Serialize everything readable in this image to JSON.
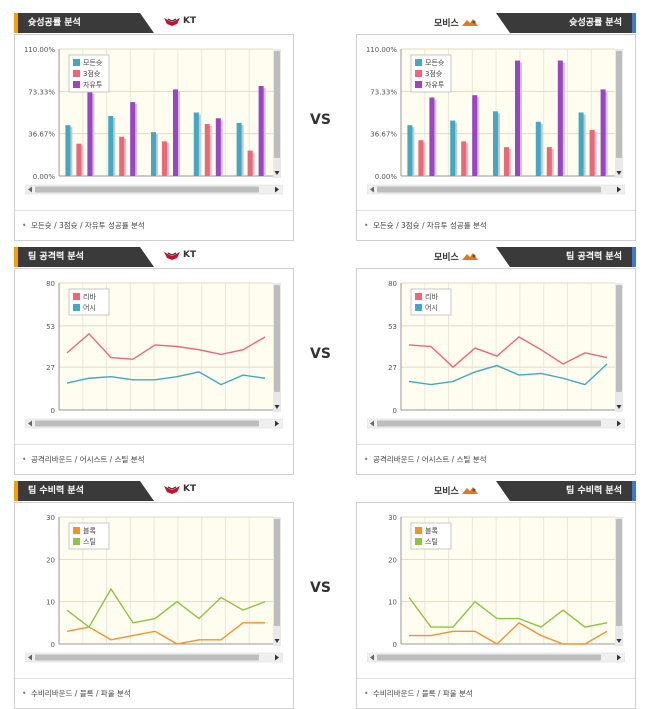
{
  "colors": {
    "bar_series": [
      "#3fa9c6",
      "#ee6677",
      "#9b44c8"
    ],
    "attack_series": [
      "#ee6677",
      "#3fa9c6"
    ],
    "defense_series": [
      "#f4922f",
      "#8cc63f"
    ],
    "plot_bg": "#fffcf0",
    "accent_left": "#f5a000",
    "accent_right": "#3c78d8"
  },
  "vs_label": "VS",
  "teams": {
    "left": "KT",
    "right": "모비스"
  },
  "sections": [
    {
      "left_title": "슛성공률 분석",
      "right_title": "슛성공률 분석",
      "footer": "모든슛 / 3점슛 / 자유투 성공률 분석"
    },
    {
      "left_title": "팀 공격력 분석",
      "right_title": "팀 공격력 분석",
      "footer": "공격리바운드 / 어시스트 / 스틸 분석"
    },
    {
      "left_title": "팀 수비력 분석",
      "right_title": "팀 수비력 분석",
      "footer": "수비리바운드 / 블록 / 파울 분석"
    }
  ],
  "chart_data": [
    {
      "id": "kt-shooting",
      "type": "bar",
      "ylim": [
        0,
        110
      ],
      "yticks": [
        0,
        36.67,
        73.33,
        110
      ],
      "ytick_labels": [
        "0.00%",
        "36.67%",
        "73.33%",
        "110.00%"
      ],
      "series": [
        {
          "name": "모든슛",
          "values": [
            44,
            52,
            38,
            55,
            46
          ]
        },
        {
          "name": "3점슛",
          "values": [
            28,
            34,
            30,
            45,
            22
          ]
        },
        {
          "name": "자유투",
          "values": [
            73,
            64,
            75,
            50,
            78
          ]
        }
      ]
    },
    {
      "id": "mobis-shooting",
      "type": "bar",
      "ylim": [
        0,
        110
      ],
      "yticks": [
        0,
        36.67,
        73.33,
        110
      ],
      "ytick_labels": [
        "0.00%",
        "36.67%",
        "73.33%",
        "110.00%"
      ],
      "series": [
        {
          "name": "모든슛",
          "values": [
            44,
            48,
            56,
            47,
            55
          ]
        },
        {
          "name": "3점슛",
          "values": [
            31,
            30,
            25,
            25,
            40
          ]
        },
        {
          "name": "자유투",
          "values": [
            68,
            70,
            100,
            100,
            75
          ]
        }
      ]
    },
    {
      "id": "kt-attack",
      "type": "line",
      "ylim": [
        0,
        80
      ],
      "yticks": [
        0,
        27,
        53,
        80
      ],
      "ytick_labels": [
        "0",
        "27",
        "53",
        "80"
      ],
      "series": [
        {
          "name": "리바",
          "values": [
            36,
            48,
            33,
            32,
            41,
            40,
            38,
            35,
            38,
            46
          ]
        },
        {
          "name": "어시",
          "values": [
            17,
            20,
            21,
            19,
            19,
            21,
            24,
            16,
            22,
            20
          ]
        }
      ]
    },
    {
      "id": "mobis-attack",
      "type": "line",
      "ylim": [
        0,
        80
      ],
      "yticks": [
        0,
        27,
        53,
        80
      ],
      "ytick_labels": [
        "0",
        "27",
        "53",
        "80"
      ],
      "series": [
        {
          "name": "리바",
          "values": [
            41,
            40,
            27,
            39,
            34,
            46,
            38,
            29,
            36,
            33
          ]
        },
        {
          "name": "어시",
          "values": [
            18,
            16,
            18,
            24,
            28,
            22,
            23,
            20,
            16,
            29
          ]
        }
      ]
    },
    {
      "id": "kt-defense",
      "type": "line",
      "ylim": [
        0,
        30
      ],
      "yticks": [
        0,
        10,
        20,
        30
      ],
      "ytick_labels": [
        "0",
        "10",
        "20",
        "30"
      ],
      "series": [
        {
          "name": "블록",
          "values": [
            3,
            4,
            1,
            2,
            3,
            0,
            1,
            1,
            5,
            5
          ]
        },
        {
          "name": "스틸",
          "values": [
            8,
            4,
            13,
            5,
            6,
            10,
            6,
            11,
            8,
            10
          ]
        }
      ]
    },
    {
      "id": "mobis-defense",
      "type": "line",
      "ylim": [
        0,
        30
      ],
      "yticks": [
        0,
        10,
        20,
        30
      ],
      "ytick_labels": [
        "0",
        "10",
        "20",
        "30"
      ],
      "series": [
        {
          "name": "블록",
          "values": [
            2,
            2,
            3,
            3,
            0,
            5,
            2,
            0,
            0,
            3
          ]
        },
        {
          "name": "스틸",
          "values": [
            11,
            4,
            4,
            10,
            6,
            6,
            4,
            8,
            4,
            5
          ]
        }
      ]
    }
  ]
}
